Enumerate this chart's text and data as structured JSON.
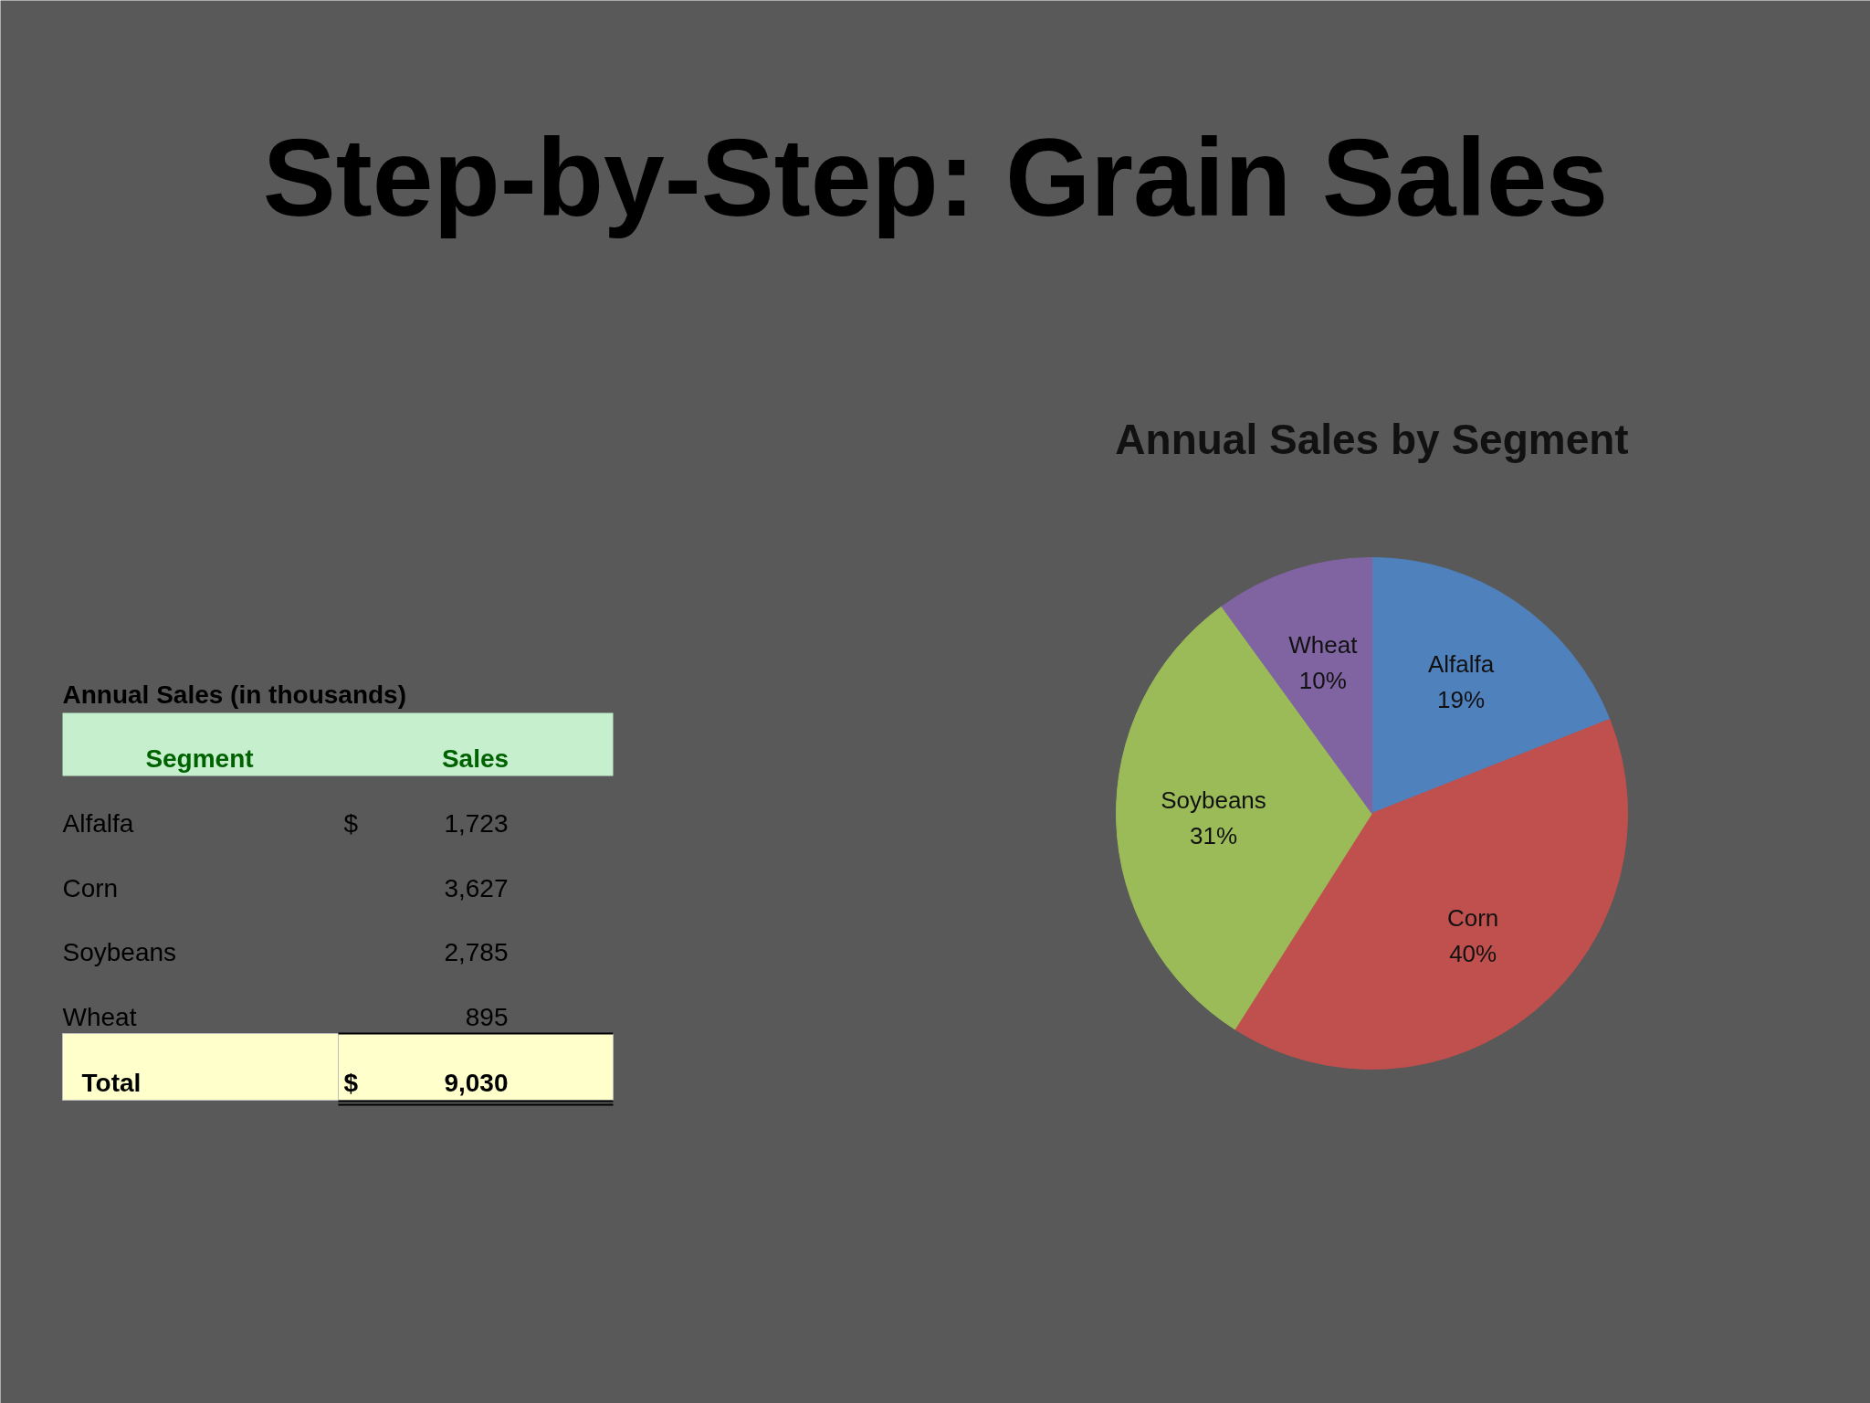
{
  "chart_data": [
    {
      "type": "other",
      "title": "Annual Sales (in thousands)",
      "categories": [
        "Alfalfa",
        "Corn",
        "Soybeans",
        "Wheat"
      ],
      "values": [
        1723,
        3627,
        2785,
        895
      ],
      "value_labels": [
        "1,723",
        "3,627",
        "2,785",
        "895"
      ],
      "annotations": [
        "Step-by-Step: Grain Sales",
        "Segment",
        "Sales",
        "$",
        "Total",
        "$",
        "9,030"
      ]
    },
    {
      "type": "pie",
      "title": "Annual Sales by Segment",
      "categories": [
        "Alfalfa",
        "Corn",
        "Soybeans",
        "Wheat"
      ],
      "values": [
        19,
        40,
        31,
        10
      ],
      "colors": [
        "#4f81bd",
        "#c0504d",
        "#9bbb59",
        "#8064a2"
      ],
      "value_labels": [
        "19%",
        "40%",
        "31%",
        "10%"
      ]
    }
  ]
}
